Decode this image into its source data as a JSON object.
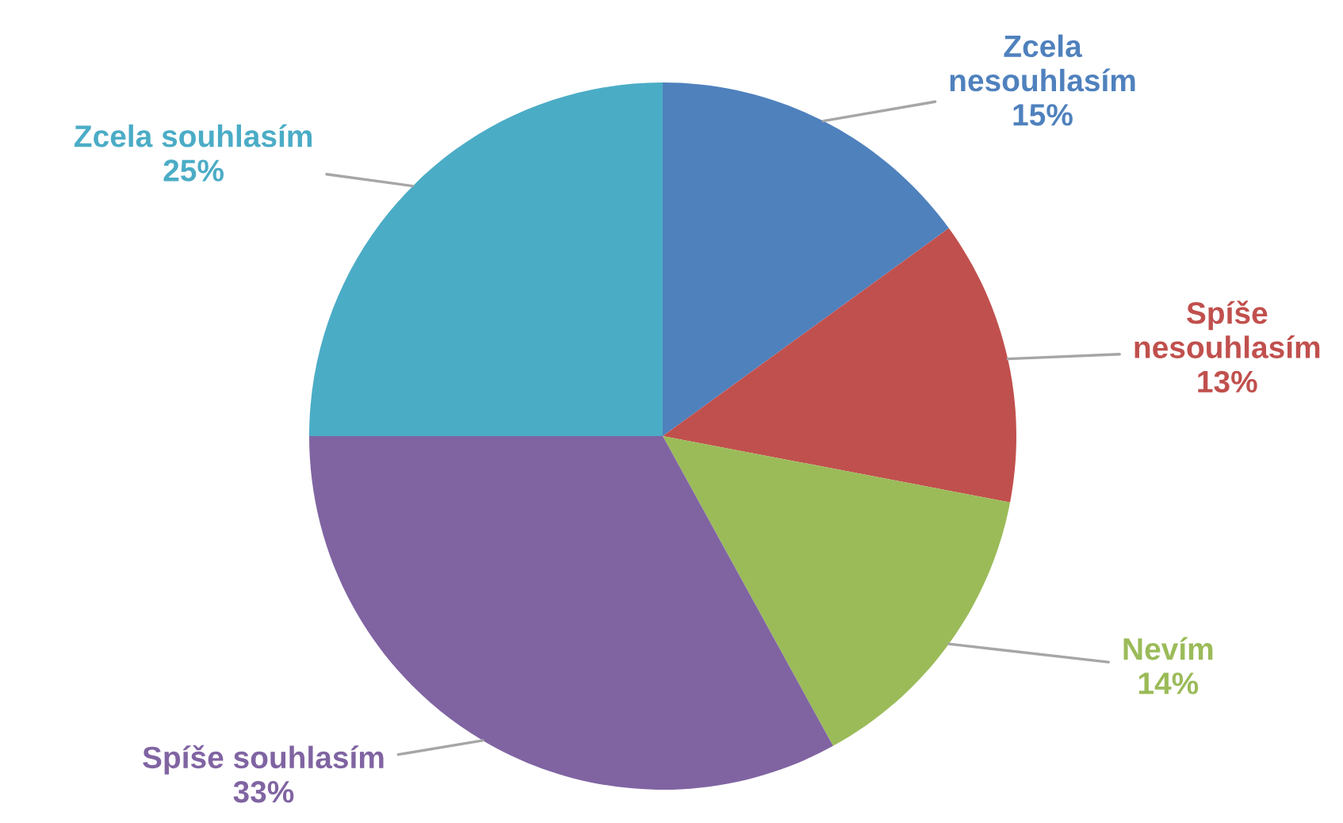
{
  "chart_data": {
    "type": "pie",
    "categories": [
      "Zcela nesouhlasím",
      "Spíše nesouhlasím",
      "Nevím",
      "Spíše souhlasím",
      "Zcela souhlasím"
    ],
    "values": [
      15,
      13,
      14,
      33,
      25
    ],
    "value_labels": [
      "15%",
      "13%",
      "14%",
      "33%",
      "25%"
    ],
    "colors": [
      "#4f81bd",
      "#c0504d",
      "#9bbb59",
      "#8064a2",
      "#4bacc6"
    ]
  }
}
